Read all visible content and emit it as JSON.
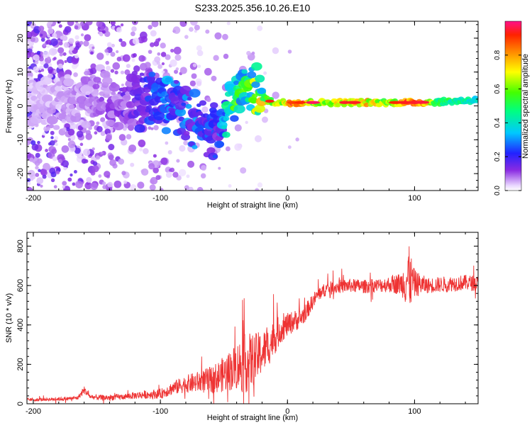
{
  "title": "S233.2025.356.10.26.E10",
  "chart_data": [
    {
      "type": "heatmap",
      "xlabel": "Height of straight line (km)",
      "ylabel": "Frequency (Hz)",
      "xlim": [
        -205,
        150
      ],
      "ylim": [
        -25,
        25
      ],
      "xticks": [
        -200,
        -100,
        0,
        100
      ],
      "xtick_labels": [
        "-200",
        "-100",
        "0",
        "100"
      ],
      "yticks": [
        -20,
        -10,
        0,
        10,
        20
      ],
      "ytick_labels": [
        "-20",
        "-10",
        "0",
        "10",
        "20"
      ],
      "colorbar": {
        "label": "Normalized spectral amplitude",
        "range": [
          0,
          1
        ],
        "ticks": [
          0.0,
          0.2,
          0.4,
          0.6,
          0.8
        ],
        "tick_labels": [
          "0.0",
          "0.2",
          "0.4",
          "0.6",
          "0.8"
        ]
      },
      "ridge": {
        "x": [
          -200,
          -175,
          -160,
          -150,
          -140,
          -130,
          -120,
          -110,
          -100,
          -90,
          -80,
          -70,
          -60,
          -55,
          -50,
          -45,
          -40,
          -35,
          -30,
          -25,
          -20,
          -15,
          -10,
          -5,
          0,
          10,
          20,
          40,
          60,
          80,
          100,
          120,
          140,
          150
        ],
        "freq": [
          2,
          2,
          2,
          3,
          2,
          2,
          2,
          2,
          1,
          0,
          -2,
          -5,
          -7,
          -9,
          -4,
          2,
          3,
          5,
          5,
          4,
          3,
          1.5,
          1,
          1,
          1,
          1,
          1,
          1,
          1,
          1,
          1,
          1.2,
          1.6,
          1.8
        ],
        "amplitude": [
          0.05,
          0.06,
          0.07,
          0.08,
          0.1,
          0.12,
          0.15,
          0.2,
          0.25,
          0.28,
          0.25,
          0.25,
          0.22,
          0.2,
          0.3,
          0.45,
          0.5,
          0.55,
          0.5,
          0.55,
          0.6,
          0.55,
          0.7,
          0.6,
          0.8,
          0.95,
          0.6,
          0.7,
          0.75,
          0.6,
          0.95,
          0.5,
          0.45,
          0.4
        ]
      }
    },
    {
      "type": "line",
      "xlabel": "Height of straight line (km)",
      "ylabel": "SNR (10 * v/v)",
      "xlim": [
        -205,
        150
      ],
      "ylim": [
        0,
        870
      ],
      "xticks": [
        -200,
        -100,
        0,
        100
      ],
      "xtick_labels": [
        "-200",
        "-100",
        "0",
        "100"
      ],
      "yticks": [
        0,
        200,
        400,
        600,
        800
      ],
      "ytick_labels": [
        "0",
        "200",
        "400",
        "600",
        "800"
      ],
      "series": [
        {
          "name": "SNR",
          "color": "#ee3333",
          "x": [
            -205,
            -190,
            -175,
            -165,
            -160,
            -155,
            -145,
            -130,
            -115,
            -100,
            -90,
            -80,
            -70,
            -60,
            -50,
            -40,
            -35,
            -30,
            -25,
            -20,
            -15,
            -10,
            -5,
            0,
            5,
            10,
            15,
            20,
            25,
            30,
            40,
            50,
            60,
            70,
            80,
            90,
            95,
            100,
            110,
            120,
            130,
            140,
            150
          ],
          "values": [
            20,
            22,
            25,
            30,
            70,
            35,
            30,
            35,
            45,
            50,
            80,
            100,
            110,
            120,
            150,
            190,
            200,
            210,
            230,
            260,
            290,
            340,
            380,
            400,
            420,
            430,
            470,
            520,
            560,
            580,
            595,
            600,
            595,
            600,
            605,
            610,
            640,
            610,
            600,
            605,
            610,
            615,
            610
          ],
          "noise": [
            8,
            8,
            10,
            10,
            20,
            12,
            15,
            15,
            20,
            25,
            35,
            45,
            55,
            70,
            90,
            120,
            150,
            150,
            130,
            110,
            100,
            90,
            70,
            60,
            55,
            50,
            45,
            40,
            35,
            35,
            35,
            35,
            35,
            35,
            40,
            60,
            180,
            70,
            40,
            40,
            40,
            40,
            40
          ]
        }
      ]
    }
  ]
}
